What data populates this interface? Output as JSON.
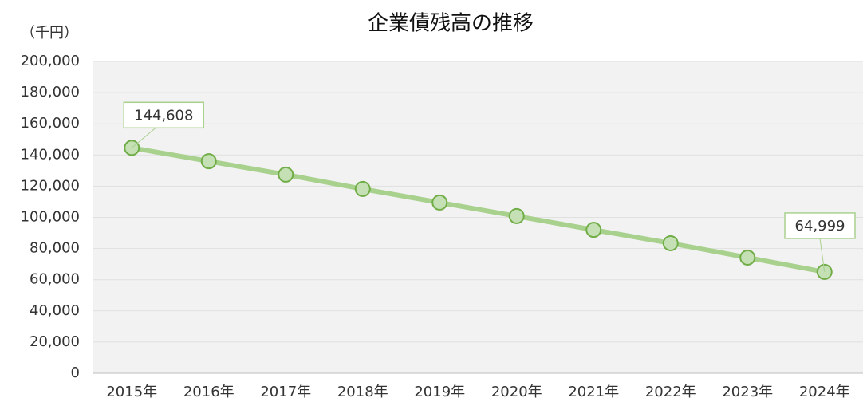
{
  "chart_data": {
    "type": "line",
    "title": "企業債残高の推移",
    "y_axis_label": "（千円）",
    "categories": [
      "2015年",
      "2016年",
      "2017年",
      "2018年",
      "2019年",
      "2020年",
      "2021年",
      "2022年",
      "2023年",
      "2024年"
    ],
    "series": [
      {
        "name": "企業債残高",
        "color": "#a9d18e",
        "marker_color": "#70ad47",
        "values": [
          144608,
          136000,
          127400,
          118200,
          109500,
          100800,
          92000,
          83400,
          74200,
          64999
        ],
        "value_labels": [
          "144,608",
          null,
          null,
          null,
          null,
          null,
          null,
          null,
          null,
          "64,999"
        ]
      }
    ],
    "ylim": [
      0,
      200000
    ],
    "yticks": [
      0,
      {
        "value": 20000,
        "label": "20,000"
      },
      {
        "value": 40000,
        "label": "40,000"
      },
      {
        "value": 60000,
        "label": "60,000"
      },
      {
        "value": 80000,
        "label": "80,000"
      },
      {
        "value": 100000,
        "label": "100,000"
      },
      {
        "value": 120000,
        "label": "120,000"
      },
      {
        "value": 140000,
        "label": "140,000"
      },
      {
        "value": 160000,
        "label": "160,000"
      },
      {
        "value": 180000,
        "label": "180,000"
      },
      {
        "value": 200000,
        "label": "200,000"
      }
    ],
    "grid": true
  }
}
